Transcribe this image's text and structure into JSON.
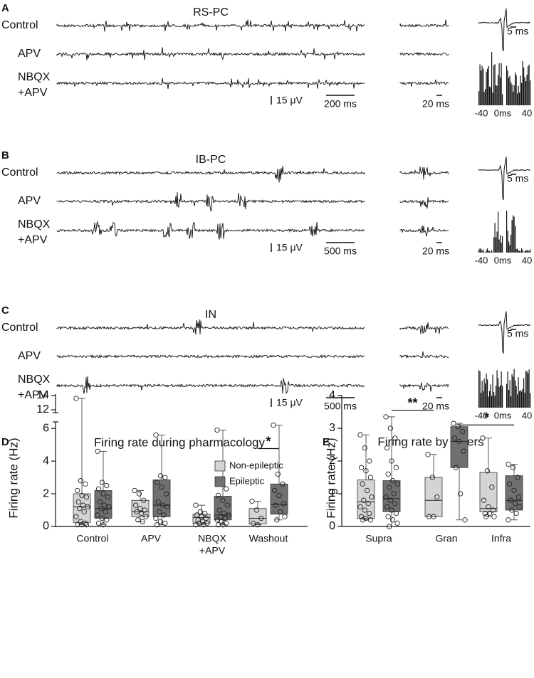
{
  "traces": {
    "panels": [
      {
        "letter": "A",
        "title": "RS-PC",
        "rows": [
          [
            "Control"
          ],
          [
            "APV"
          ],
          [
            "NBQX",
            "+APV"
          ]
        ],
        "scale_amplitude": "15 μV",
        "scale_time": "200 ms",
        "scale_snippet": "20 ms",
        "scale_waveform": "5 ms",
        "acg_ticks": [
          "-40",
          "0ms",
          "40"
        ]
      },
      {
        "letter": "B",
        "title": "IB-PC",
        "rows": [
          [
            "Control"
          ],
          [
            "APV"
          ],
          [
            "NBQX",
            "+APV"
          ]
        ],
        "scale_amplitude": "15 μV",
        "scale_time": "500 ms",
        "scale_snippet": "20 ms",
        "scale_waveform": "5 ms",
        "acg_ticks": [
          "-40",
          "0ms",
          "40"
        ]
      },
      {
        "letter": "C",
        "title": "IN",
        "rows": [
          [
            "Control"
          ],
          [
            "APV"
          ],
          [
            "NBQX",
            "+APV"
          ]
        ],
        "scale_amplitude": "15 μV",
        "scale_time": "500 ms",
        "scale_snippet": "20 ms",
        "scale_waveform": "5 ms",
        "acg_ticks": [
          "-40",
          "0ms",
          "40"
        ]
      }
    ]
  },
  "chart_data": [
    {
      "type": "box",
      "letter": "D",
      "title": "Firing rate during pharmacology",
      "y_label": "Firing rate (Hz)",
      "categories": [
        "Control",
        "APV",
        [
          "NBQX",
          "+APV"
        ],
        "Washout"
      ],
      "ylim": [
        0,
        14.2
      ],
      "y_break": [
        6.4,
        11.6
      ],
      "yticks": [
        0,
        2,
        4,
        6,
        12,
        14
      ],
      "legend": "top-center",
      "annotations": [
        "*"
      ],
      "series": [
        {
          "name": "Non-epileptic",
          "color": "#d4d4d4",
          "values": [
            {
              "min": 0.1,
              "q1": 0.25,
              "median": 1.2,
              "q3": 2.0,
              "max": 13.6,
              "points": [
                13.6,
                2.8,
                2.6,
                2.2,
                1.9,
                1.8,
                1.5,
                1.3,
                1.2,
                1.1,
                0.9,
                0.6,
                0.3,
                0.2,
                0.1,
                0.1,
                0.1
              ]
            },
            {
              "min": 0.3,
              "q1": 0.6,
              "median": 0.9,
              "q3": 1.6,
              "max": 2.2,
              "points": [
                2.2,
                2.0,
                1.6,
                1.3,
                1.1,
                1.0,
                0.9,
                0.8,
                0.6,
                0.4,
                0.3
              ]
            },
            {
              "min": 0.1,
              "q1": 0.2,
              "median": 0.55,
              "q3": 0.75,
              "max": 1.3,
              "points": [
                1.3,
                0.9,
                0.8,
                0.7,
                0.6,
                0.5,
                0.4,
                0.3,
                0.2,
                0.2,
                0.1,
                0.1
              ]
            },
            {
              "min": 0.1,
              "q1": 0.15,
              "median": 0.5,
              "q3": 1.1,
              "max": 1.55,
              "points": [
                1.55,
                1.0,
                0.5,
                0.2,
                0.1
              ]
            }
          ]
        },
        {
          "name": "Epileptic",
          "color": "#707070",
          "values": [
            {
              "min": 0.1,
              "q1": 0.5,
              "median": 1.1,
              "q3": 2.2,
              "max": 4.6,
              "points": [
                4.6,
                2.7,
                2.5,
                2.3,
                2.0,
                1.8,
                1.5,
                1.3,
                1.2,
                1.1,
                0.9,
                0.7,
                0.5,
                0.4,
                0.2,
                0.1
              ]
            },
            {
              "min": 0.1,
              "q1": 0.6,
              "median": 1.3,
              "q3": 2.85,
              "max": 5.6,
              "points": [
                5.6,
                3.1,
                3.0,
                2.7,
                2.4,
                2.0,
                1.5,
                1.3,
                1.2,
                0.9,
                0.7,
                0.5,
                0.3,
                0.2,
                0.1
              ]
            },
            {
              "min": 0.1,
              "q1": 0.4,
              "median": 0.7,
              "q3": 1.85,
              "max": 5.9,
              "points": [
                5.9,
                2.7,
                2.3,
                1.9,
                1.6,
                1.3,
                1.0,
                0.8,
                0.7,
                0.6,
                0.5,
                0.4,
                0.3,
                0.2,
                0.1,
                0.1
              ]
            },
            {
              "min": 0.4,
              "q1": 0.75,
              "median": 1.35,
              "q3": 2.6,
              "max": 6.2,
              "points": [
                6.2,
                3.2,
                2.6,
                2.2,
                1.9,
                1.4,
                1.3,
                0.9,
                0.6,
                0.4
              ]
            }
          ]
        }
      ]
    },
    {
      "type": "box",
      "letter": "E",
      "title": "Firing rate by layers",
      "y_label": "Firing rate (Hz)",
      "categories": [
        "Supra",
        "Gran",
        "Infra"
      ],
      "ylim": [
        0,
        4
      ],
      "yticks": [
        0,
        1,
        2,
        3,
        4
      ],
      "annotations": [
        "**",
        "*"
      ],
      "series": [
        {
          "color": "#d4d4d4",
          "values": [
            {
              "min": 0.2,
              "q1": 0.25,
              "median": 0.75,
              "q3": 1.42,
              "max": 2.8,
              "points": [
                2.8,
                2.4,
                2.0,
                1.8,
                1.7,
                1.5,
                1.3,
                1.1,
                0.9,
                0.8,
                0.7,
                0.6,
                0.5,
                0.4,
                0.3,
                0.25,
                0.2,
                0.2
              ]
            },
            {
              "min": 0.3,
              "q1": 0.3,
              "median": 0.8,
              "q3": 1.5,
              "max": 2.2,
              "points": [
                2.2,
                1.5,
                0.9,
                0.3,
                0.3
              ]
            },
            {
              "min": 0.3,
              "q1": 0.45,
              "median": 0.55,
              "q3": 1.65,
              "max": 2.7,
              "points": [
                2.7,
                1.7,
                1.2,
                0.8,
                0.6,
                0.5,
                0.4,
                0.4,
                0.3,
                0.3
              ]
            }
          ]
        },
        {
          "color": "#707070",
          "values": [
            {
              "min": 0,
              "q1": 0.45,
              "median": 0.85,
              "q3": 1.4,
              "max": 3.35,
              "points": [
                3.35,
                3.0,
                2.7,
                2.4,
                2.0,
                1.8,
                1.6,
                1.4,
                1.3,
                1.2,
                1.0,
                0.9,
                0.8,
                0.7,
                0.6,
                0.5,
                0.4,
                0.3,
                0.2,
                0.1,
                0
              ]
            },
            {
              "min": 0.2,
              "q1": 1.8,
              "median": 2.6,
              "q3": 3.05,
              "max": 3.15,
              "points": [
                3.15,
                3.05,
                2.9,
                2.7,
                2.6,
                2.3,
                1.8,
                1.0,
                0.2
              ]
            },
            {
              "min": 0.2,
              "q1": 0.5,
              "median": 0.8,
              "q3": 1.55,
              "max": 1.9,
              "points": [
                1.9,
                1.8,
                1.5,
                1.3,
                1.1,
                0.9,
                0.8,
                0.7,
                0.6,
                0.5,
                0.4,
                0.2
              ]
            }
          ]
        }
      ]
    }
  ]
}
